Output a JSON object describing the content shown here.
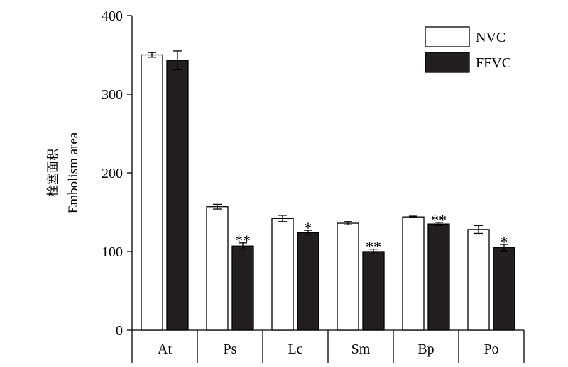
{
  "chart_data": {
    "type": "bar",
    "title": "",
    "ylabel_cn": "栓塞面积",
    "ylabel": "Embolism area",
    "xlabel": "",
    "categories": [
      "At",
      "Ps",
      "Lc",
      "Sm",
      "Bp",
      "Po"
    ],
    "ylim": [
      0,
      400
    ],
    "yticks": [
      0,
      100,
      200,
      300,
      400
    ],
    "series": [
      {
        "name": "NVC",
        "fill": "#ffffff",
        "values": [
          350,
          157,
          142,
          136,
          144,
          128
        ],
        "errors": [
          3,
          3,
          4,
          2,
          1,
          5
        ]
      },
      {
        "name": "FFVC",
        "fill": "#231f20",
        "values": [
          343,
          107,
          124,
          100,
          135,
          105
        ],
        "errors": [
          12,
          4,
          3,
          3,
          2,
          4
        ]
      }
    ],
    "significance": [
      "",
      "**",
      "*",
      "**",
      "**",
      "*"
    ],
    "legend_position": "top-right",
    "grid": false
  }
}
